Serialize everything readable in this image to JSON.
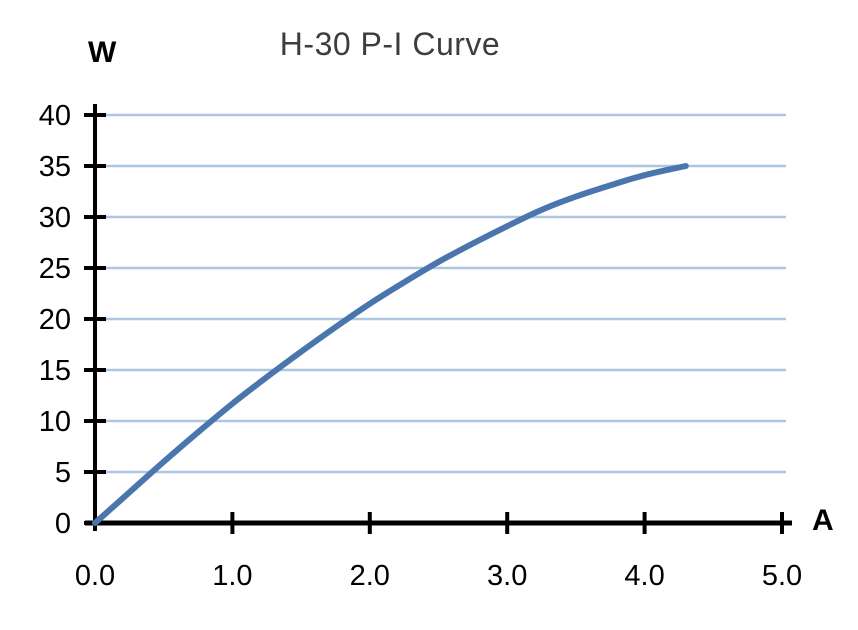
{
  "chart_data": {
    "type": "line",
    "title": "H-30 P-I Curve",
    "xlabel": "A",
    "ylabel": "W",
    "xlim": [
      0,
      5
    ],
    "ylim": [
      0,
      40
    ],
    "xticks": [
      0,
      1,
      2,
      3,
      4,
      5
    ],
    "xtick_labels": [
      "0.0",
      "1.0",
      "2.0",
      "3.0",
      "4.0",
      "5.0"
    ],
    "yticks": [
      0,
      5,
      10,
      15,
      20,
      25,
      30,
      35,
      40
    ],
    "ytick_labels": [
      "0",
      "5",
      "10",
      "15",
      "20",
      "25",
      "30",
      "35",
      "40"
    ],
    "grid": "horizontal",
    "legend": "none",
    "series": [
      {
        "name": "H-30 P-I",
        "x": [
          0,
          0.25,
          0.5,
          0.75,
          1.0,
          1.25,
          1.5,
          1.75,
          2.0,
          2.25,
          2.5,
          2.75,
          3.0,
          3.25,
          3.5,
          3.75,
          4.0,
          4.3
        ],
        "y": [
          0,
          3.0,
          6.0,
          8.9,
          11.7,
          14.3,
          16.8,
          19.2,
          21.5,
          23.6,
          25.6,
          27.4,
          29.1,
          30.7,
          32.0,
          33.1,
          34.1,
          35.0
        ]
      }
    ],
    "colors": {
      "curve": "#4a76ad",
      "gridline": "#aec6e0",
      "axis": "#000000",
      "title_text": "#3d3d3d",
      "tick_text": "#000000",
      "background": "#ffffff"
    }
  }
}
